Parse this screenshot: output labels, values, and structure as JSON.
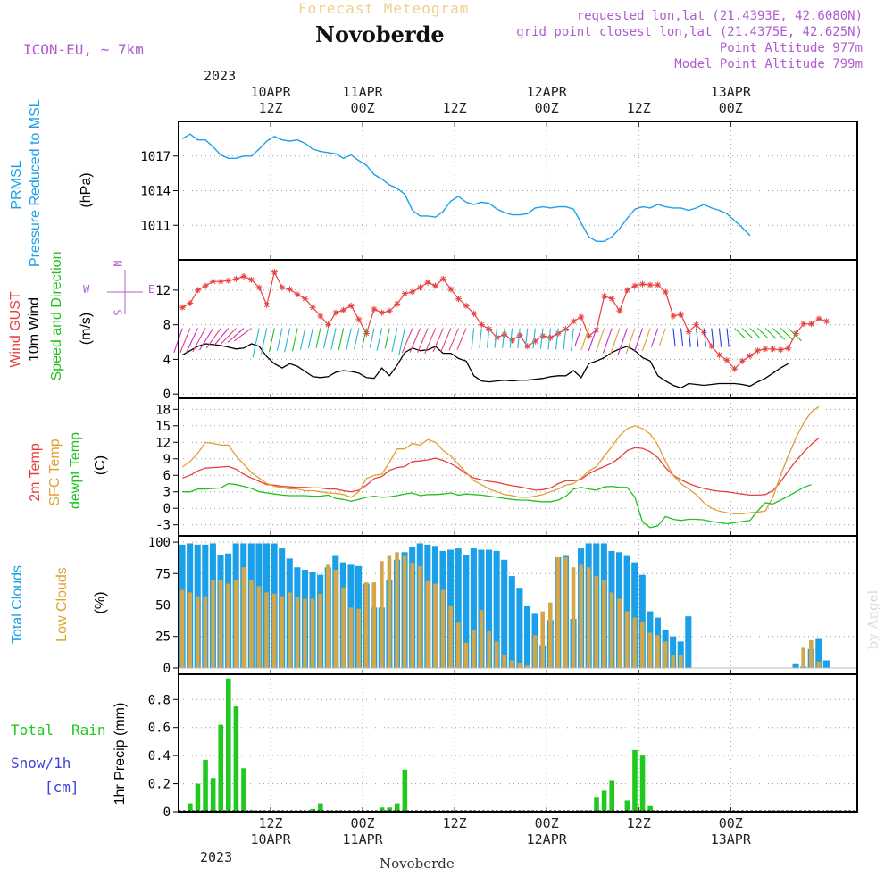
{
  "header": {
    "faint_title": "Forecast Meteogram",
    "location": "Novoberde",
    "model": "ICON-EU, ~ 7km",
    "requested": "requested lon,lat (21.4393E, 42.6080N)",
    "grid": "grid point closest lon,lat (21.4375E, 42.625N)",
    "point_alt": "Point Altitude 977m",
    "model_alt": "Model Point Altitude 799m",
    "footer_name": "Novoberde",
    "watermark": "by Angel"
  },
  "time_axis": {
    "top_year": "2023",
    "bottom_year": "2023",
    "ticks": [
      {
        "hour": 12,
        "top_date": "10APR",
        "top_time": "12Z",
        "bottom_time": "12Z",
        "bottom_date": "10APR"
      },
      {
        "hour": 24,
        "top_date": "11APR",
        "top_time": "00Z",
        "bottom_time": "00Z",
        "bottom_date": "11APR"
      },
      {
        "hour": 36,
        "top_date": "",
        "top_time": "12Z",
        "bottom_time": "12Z",
        "bottom_date": ""
      },
      {
        "hour": 48,
        "top_date": "12APR",
        "top_time": "00Z",
        "bottom_time": "00Z",
        "bottom_date": "12APR"
      },
      {
        "hour": 60,
        "top_date": "",
        "top_time": "12Z",
        "bottom_time": "12Z",
        "bottom_date": ""
      },
      {
        "hour": 72,
        "top_date": "13APR",
        "top_time": "00Z",
        "bottom_time": "00Z",
        "bottom_date": "13APR"
      }
    ]
  },
  "labels": {
    "p1": {
      "a": "PRMSL",
      "b": "Pressure Reduced to MSL",
      "unit": "(hPa)"
    },
    "p2": {
      "a": "Wind GUST",
      "b": "10m Wind",
      "c": "Speed and Direction",
      "unit": "(m/s)",
      "compass_n": "N",
      "compass_s": "S",
      "compass_w": "W",
      "compass_e": "E"
    },
    "p3": {
      "a": "2m Temp",
      "b": "SFC Temp",
      "c": "dewpt Temp",
      "unit": "(C)"
    },
    "p4": {
      "a": "Total Clouds",
      "b": "Low Clouds",
      "unit": "(%)"
    },
    "p5": {
      "a": "Total",
      "b": "Rain",
      "c": "Snow/1h",
      "d": "[cm]",
      "unit": "1hr Precip (mm)"
    }
  },
  "colors": {
    "pressure": "#1aa0e8",
    "gust": "#e84040",
    "wind": "#000000",
    "temp2m": "#e84040",
    "sfc": "#e0a030",
    "dewpt": "#20c020",
    "total_clouds": "#1aa0e8",
    "low_clouds": "#d4a64a",
    "rain": "#20c820",
    "snow": "#4040e0",
    "purple": "#b05cd0"
  },
  "chart_data": [
    {
      "type": "line",
      "title": "Pressure Reduced to MSL",
      "ylabel": "(hPa)",
      "ylim": [
        1008,
        1020
      ],
      "yticks": [
        1011,
        1014,
        1017
      ],
      "x_start_hour": 0,
      "x_step_hours": 1,
      "series": [
        {
          "name": "PRMSL",
          "values": [
            1018.5,
            1018.9,
            1018.4,
            1018.4,
            1017.8,
            1017.1,
            1016.8,
            1016.8,
            1017.0,
            1017.0,
            1017.6,
            1018.3,
            1018.7,
            1018.4,
            1018.3,
            1018.4,
            1018.1,
            1017.6,
            1017.4,
            1017.3,
            1017.2,
            1016.8,
            1017.1,
            1016.6,
            1016.2,
            1015.4,
            1015.0,
            1014.5,
            1014.2,
            1013.7,
            1012.3,
            1011.8,
            1011.8,
            1011.7,
            1012.2,
            1013.1,
            1013.5,
            1013.0,
            1012.8,
            1013.0,
            1012.9,
            1012.4,
            1012.1,
            1011.9,
            1011.9,
            1012.0,
            1012.5,
            1012.6,
            1012.5,
            1012.6,
            1012.6,
            1012.4,
            1011.2,
            1010.0,
            1009.6,
            1009.6,
            1010.0,
            1010.7,
            1011.6,
            1012.4,
            1012.6,
            1012.5,
            1012.8,
            1012.6,
            1012.5,
            1012.5,
            1012.3,
            1012.5,
            1012.8,
            1012.5,
            1012.3,
            1012.0,
            1011.4,
            1010.8,
            1010.1
          ]
        }
      ]
    },
    {
      "type": "line",
      "title": "Wind GUST / 10m Wind Speed and Direction",
      "ylabel": "(m/s)",
      "ylim": [
        -0.5,
        15.5
      ],
      "yticks": [
        0,
        4,
        8,
        12
      ],
      "x_start_hour": 0,
      "x_step_hours": 1,
      "series": [
        {
          "name": "Wind GUST",
          "values": [
            10.0,
            10.5,
            12.0,
            12.5,
            13.0,
            13.0,
            13.1,
            13.3,
            13.6,
            13.2,
            12.3,
            10.3,
            14.1,
            12.3,
            12.1,
            11.5,
            11.0,
            10.0,
            9.0,
            8.0,
            9.4,
            9.7,
            10.2,
            8.6,
            7.0,
            9.8,
            9.4,
            9.6,
            10.4,
            11.6,
            11.8,
            12.3,
            12.9,
            12.5,
            13.3,
            12.1,
            11.0,
            10.2,
            9.3,
            8.0,
            7.5,
            6.5,
            6.9,
            6.2,
            6.8,
            5.5,
            6.1,
            6.7,
            6.5,
            7.0,
            7.5,
            8.4,
            8.9,
            6.7,
            7.4,
            11.3,
            11.0,
            9.6,
            12.0,
            12.5,
            12.7,
            12.6,
            12.6,
            11.8,
            9.0,
            9.2,
            7.2,
            8.0,
            7.1,
            5.5,
            4.5,
            3.9,
            2.9,
            3.8,
            4.4,
            5.0,
            5.2,
            5.2,
            5.1,
            5.3,
            7.0,
            8.1,
            8.1,
            8.7,
            8.4
          ]
        },
        {
          "name": "10m Wind",
          "values": [
            4.5,
            5.0,
            5.5,
            5.8,
            5.7,
            5.6,
            5.4,
            5.2,
            5.3,
            5.8,
            5.5,
            4.3,
            3.5,
            3.0,
            3.5,
            3.2,
            2.6,
            2.0,
            1.9,
            2.0,
            2.5,
            2.7,
            2.6,
            2.4,
            1.9,
            1.8,
            3.0,
            2.1,
            3.3,
            4.8,
            5.3,
            5.0,
            5.1,
            5.5,
            4.7,
            4.7,
            4.1,
            3.8,
            2.1,
            1.5,
            1.4,
            1.5,
            1.6,
            1.5,
            1.6,
            1.6,
            1.7,
            1.8,
            2.0,
            2.1,
            2.1,
            2.7,
            1.9,
            3.5,
            3.8,
            4.2,
            4.8,
            5.2,
            5.5,
            5.0,
            4.2,
            3.8,
            2.1,
            1.5,
            1.0,
            0.7,
            1.2,
            1.1,
            1.0,
            1.1,
            1.2,
            1.2,
            1.2,
            1.1,
            0.9,
            1.4,
            1.8,
            2.4,
            3.0,
            3.5
          ]
        }
      ]
    },
    {
      "type": "line",
      "title": "2m Temp / SFC Temp / dewpt Temp",
      "ylabel": "(C)",
      "ylim": [
        -5,
        20
      ],
      "yticks": [
        -3,
        0,
        3,
        6,
        9,
        12,
        15,
        18
      ],
      "x_start_hour": 0,
      "x_step_hours": 1,
      "series": [
        {
          "name": "2m Temp",
          "values": [
            5.5,
            6.0,
            6.8,
            7.3,
            7.4,
            7.5,
            7.6,
            7.1,
            6.2,
            5.5,
            4.9,
            4.3,
            4.2,
            4.0,
            3.9,
            3.8,
            3.8,
            3.7,
            3.7,
            3.5,
            3.5,
            3.2,
            3.0,
            3.3,
            4.2,
            5.4,
            5.8,
            6.9,
            7.4,
            7.6,
            8.5,
            8.6,
            8.8,
            9.1,
            8.7,
            8.1,
            7.3,
            6.3,
            5.5,
            5.2,
            4.9,
            4.7,
            4.4,
            4.1,
            3.9,
            3.6,
            3.3,
            3.4,
            3.7,
            4.5,
            5.0,
            5.0,
            5.3,
            6.3,
            7.0,
            7.6,
            8.2,
            9.2,
            10.5,
            11.0,
            10.9,
            10.3,
            9.2,
            7.4,
            6.0,
            5.2,
            4.5,
            4.0,
            3.6,
            3.3,
            3.1,
            3.0,
            2.8,
            2.6,
            2.4,
            2.4,
            2.5,
            3.2,
            4.8,
            6.8,
            8.6,
            10.2,
            11.6,
            12.8
          ]
        },
        {
          "name": "SFC Temp",
          "values": [
            7.5,
            8.5,
            10.0,
            12.0,
            11.8,
            11.5,
            11.5,
            9.5,
            8.0,
            6.5,
            5.5,
            4.5,
            4.0,
            3.8,
            3.5,
            3.5,
            3.2,
            3.2,
            3.0,
            2.8,
            2.7,
            2.5,
            2.0,
            3.0,
            5.4,
            6.0,
            6.2,
            8.4,
            10.8,
            10.8,
            11.8,
            11.5,
            12.5,
            12.0,
            10.5,
            9.5,
            8.0,
            6.5,
            5.0,
            4.3,
            3.5,
            3.0,
            2.5,
            2.3,
            2.0,
            2.0,
            2.2,
            2.5,
            3.0,
            3.5,
            4.2,
            4.5,
            5.5,
            6.8,
            7.6,
            9.5,
            11.2,
            13.2,
            14.5,
            15.0,
            14.5,
            13.5,
            11.5,
            8.5,
            6.0,
            4.5,
            3.5,
            2.5,
            1.0,
            0.0,
            -0.5,
            -0.8,
            -1.0,
            -1.0,
            -0.8,
            -0.7,
            -0.5,
            2.0,
            6.0,
            9.5,
            12.8,
            15.5,
            17.5,
            18.5
          ]
        },
        {
          "name": "dewpt Temp",
          "values": [
            3.0,
            3.0,
            3.5,
            3.5,
            3.6,
            3.7,
            4.5,
            4.3,
            4.0,
            3.6,
            3.0,
            2.8,
            2.6,
            2.4,
            2.3,
            2.3,
            2.3,
            2.2,
            2.2,
            2.4,
            1.8,
            1.6,
            1.3,
            1.6,
            2.0,
            2.2,
            2.0,
            2.1,
            2.3,
            2.6,
            2.8,
            2.3,
            2.5,
            2.5,
            2.6,
            2.8,
            2.4,
            2.6,
            2.5,
            2.4,
            2.2,
            2.0,
            1.8,
            1.6,
            1.5,
            1.5,
            1.3,
            1.2,
            1.2,
            1.5,
            2.2,
            3.5,
            3.8,
            3.5,
            3.3,
            3.9,
            4.0,
            3.8,
            3.8,
            2.0,
            -2.5,
            -3.5,
            -3.2,
            -1.5,
            -2.0,
            -2.2,
            -2.0,
            -2.0,
            -2.1,
            -2.4,
            -2.6,
            -2.8,
            -2.6,
            -2.4,
            -2.2,
            -0.5,
            1.0,
            0.8,
            1.5,
            2.2,
            3.0,
            3.8,
            4.3
          ]
        }
      ]
    },
    {
      "type": "bar",
      "title": "Total Clouds / Low Clouds",
      "ylabel": "(%)",
      "ylim": [
        -5,
        105
      ],
      "yticks": [
        0,
        25,
        50,
        75,
        100
      ],
      "x_start_hour": 0,
      "x_step_hours": 1,
      "series": [
        {
          "name": "Total Clouds",
          "values": [
            98,
            99,
            98,
            98,
            99,
            90,
            91,
            99,
            99,
            99,
            99,
            99,
            99,
            95,
            87,
            80,
            78,
            76,
            74,
            80,
            89,
            84,
            82,
            81,
            67,
            48,
            48,
            70,
            86,
            92,
            96,
            99,
            98,
            97,
            93,
            94,
            95,
            90,
            95,
            94,
            94,
            93,
            86,
            73,
            63,
            49,
            43,
            18,
            38,
            88,
            89,
            39,
            95,
            99,
            99,
            99,
            93,
            92,
            89,
            84,
            74,
            45,
            40,
            30,
            25,
            21,
            41,
            0,
            0,
            0,
            0,
            0,
            0,
            0,
            0,
            0,
            0,
            0,
            0,
            0,
            3,
            1,
            15,
            23,
            6,
            0,
            0,
            0,
            0,
            0,
            0
          ]
        },
        {
          "name": "Low Clouds",
          "values": [
            62,
            60,
            57,
            57,
            70,
            70,
            67,
            70,
            80,
            70,
            65,
            60,
            59,
            57,
            60,
            56,
            55,
            55,
            59,
            82,
            78,
            64,
            48,
            47,
            68,
            68,
            85,
            89,
            92,
            89,
            83,
            81,
            69,
            67,
            62,
            49,
            36,
            20,
            30,
            46,
            29,
            21,
            10,
            6,
            4,
            2,
            26,
            45,
            52,
            88,
            88,
            80,
            82,
            80,
            73,
            70,
            60,
            55,
            45,
            40,
            37,
            28,
            26,
            21,
            10,
            10,
            0,
            0,
            0,
            0,
            0,
            0,
            0,
            0,
            0,
            0,
            0,
            0,
            0,
            0,
            0,
            16,
            22,
            5,
            0,
            0,
            0,
            0,
            0,
            0,
            0
          ]
        }
      ]
    },
    {
      "type": "bar",
      "title": "1hr Precip",
      "ylabel": "1hr Precip (mm)",
      "ylim": [
        0,
        0.98
      ],
      "yticks": [
        0,
        0.2,
        0.4,
        0.6,
        0.8
      ],
      "x_start_hour": 0,
      "x_step_hours": 1,
      "series": [
        {
          "name": "Total Rain",
          "values": [
            0,
            0.06,
            0.2,
            0.37,
            0.24,
            0.62,
            0.95,
            0.75,
            0.31,
            0.01,
            0,
            0,
            0,
            0,
            0,
            0,
            0,
            0.02,
            0.06,
            0,
            0,
            0,
            0,
            0,
            0,
            0,
            0.03,
            0.03,
            0.06,
            0.3,
            0,
            0,
            0,
            0,
            0,
            0,
            0,
            0,
            0,
            0,
            0,
            0,
            0,
            0,
            0,
            0,
            0,
            0,
            0,
            0,
            0,
            0,
            0,
            0,
            0.1,
            0.15,
            0.22,
            0,
            0.08,
            0.44,
            0.4,
            0.04,
            0,
            0,
            0,
            0,
            0,
            0,
            0,
            0,
            0,
            0,
            0,
            0,
            0,
            0,
            0,
            0,
            0,
            0,
            0,
            0,
            0,
            0,
            0
          ]
        },
        {
          "name": "Snow/1h",
          "values": []
        }
      ]
    }
  ]
}
